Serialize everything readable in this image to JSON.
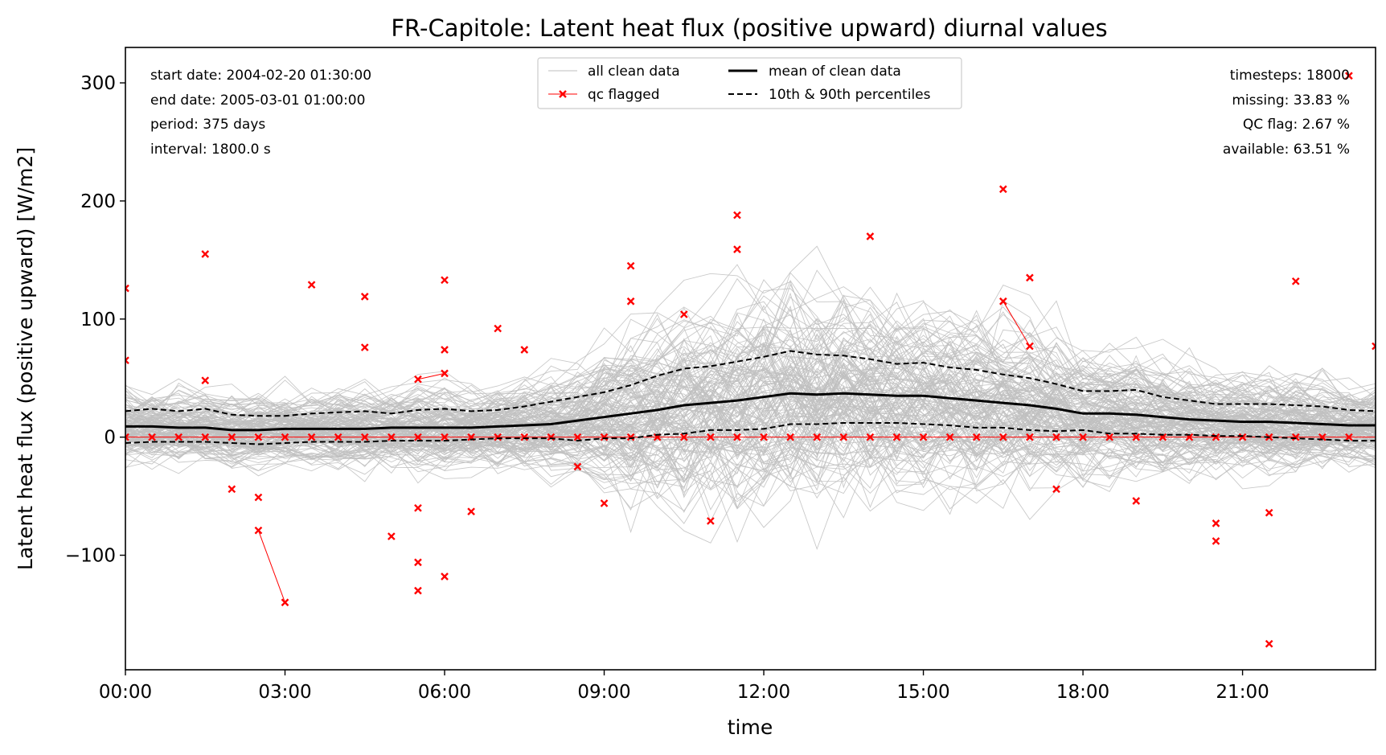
{
  "chart_data": {
    "type": "line",
    "title": "FR-Capitole: Latent heat flux (positive upward) diurnal values",
    "xlabel": "time",
    "ylabel": "Latent heat flux (positive upward) [W/m2]",
    "xlim": [
      0,
      23.5
    ],
    "ylim": [
      -197,
      330
    ],
    "x_ticks": [
      0,
      3,
      6,
      9,
      12,
      15,
      18,
      21
    ],
    "x_tick_labels": [
      "00:00",
      "03:00",
      "06:00",
      "09:00",
      "12:00",
      "15:00",
      "18:00",
      "21:00"
    ],
    "y_ticks": [
      -100,
      0,
      100,
      200,
      300
    ],
    "y_tick_labels": [
      "−100",
      "0",
      "100",
      "200",
      "300"
    ],
    "grid": false,
    "legend_position": "top-center",
    "info_left": [
      "start date: 2004-02-20 01:30:00",
      "end date: 2005-03-01 01:00:00",
      "period: 375 days",
      "interval: 1800.0 s"
    ],
    "info_right": [
      "timesteps: 18000",
      "missing: 33.83 %",
      "QC flag: 2.67 %",
      "available: 63.51 %"
    ],
    "legend": [
      {
        "label": "all clean data",
        "style": "gray-thin"
      },
      {
        "label": "qc flagged",
        "style": "red-x"
      },
      {
        "label": "mean of clean data",
        "style": "black-solid"
      },
      {
        "label": "10th & 90th percentiles",
        "style": "black-dashed"
      }
    ],
    "x": [
      0,
      0.5,
      1,
      1.5,
      2,
      2.5,
      3,
      3.5,
      4,
      4.5,
      5,
      5.5,
      6,
      6.5,
      7,
      7.5,
      8,
      8.5,
      9,
      9.5,
      10,
      10.5,
      11,
      11.5,
      12,
      12.5,
      13,
      13.5,
      14,
      14.5,
      15,
      15.5,
      16,
      16.5,
      17,
      17.5,
      18,
      18.5,
      19,
      19.5,
      20,
      20.5,
      21,
      21.5,
      22,
      22.5,
      23,
      23.5
    ],
    "series": [
      {
        "name": "mean of clean data",
        "values": [
          9,
          9,
          8,
          8,
          6,
          6,
          7,
          7,
          7,
          7,
          8,
          8,
          8,
          8,
          9,
          10,
          11,
          14,
          17,
          20,
          23,
          27,
          29,
          31,
          34,
          37,
          36,
          37,
          36,
          35,
          35,
          33,
          31,
          29,
          27,
          24,
          20,
          20,
          19,
          17,
          15,
          14,
          13,
          13,
          12,
          11,
          10,
          10
        ]
      },
      {
        "name": "10th & 90th percentiles",
        "values": [
          22,
          24,
          22,
          24,
          19,
          18,
          18,
          20,
          21,
          22,
          20,
          23,
          24,
          22,
          23,
          26,
          30,
          34,
          38,
          44,
          52,
          58,
          60,
          64,
          68,
          73,
          70,
          69,
          66,
          62,
          63,
          59,
          57,
          53,
          50,
          45,
          39,
          39,
          40,
          34,
          31,
          28,
          28,
          28,
          27,
          26,
          23,
          22
        ]
      },
      {
        "name": "10th & 90th percentiles",
        "values": [
          -5,
          -4,
          -4,
          -4,
          -5,
          -6,
          -5,
          -4,
          -4,
          -4,
          -3,
          -3,
          -3,
          -2,
          -1,
          -1,
          -1,
          -3,
          -1,
          -1,
          2,
          3,
          6,
          6,
          7,
          11,
          11,
          12,
          12,
          12,
          11,
          10,
          8,
          8,
          6,
          5,
          6,
          3,
          3,
          2,
          2,
          1,
          1,
          0,
          -1,
          -2,
          -3,
          -3
        ]
      }
    ],
    "qc_flagged": [
      [
        0,
        126
      ],
      [
        0,
        65
      ],
      [
        0,
        0
      ],
      [
        0.5,
        0
      ],
      [
        1,
        0
      ],
      [
        1.5,
        155
      ],
      [
        1.5,
        48
      ],
      [
        1.5,
        0
      ],
      [
        2,
        -44
      ],
      [
        2,
        0
      ],
      [
        2.5,
        -51
      ],
      [
        2.5,
        -79
      ],
      [
        2.5,
        0
      ],
      [
        3,
        -140
      ],
      [
        3,
        0
      ],
      [
        3.5,
        129
      ],
      [
        3.5,
        0
      ],
      [
        4,
        0
      ],
      [
        4.5,
        119
      ],
      [
        4.5,
        76
      ],
      [
        4.5,
        0
      ],
      [
        5,
        -84
      ],
      [
        5,
        0
      ],
      [
        5.5,
        49
      ],
      [
        5.5,
        -60
      ],
      [
        5.5,
        -106
      ],
      [
        5.5,
        -130
      ],
      [
        5.5,
        0
      ],
      [
        6,
        133
      ],
      [
        6,
        74
      ],
      [
        6,
        54
      ],
      [
        6,
        -118
      ],
      [
        6,
        0
      ],
      [
        6.5,
        -63
      ],
      [
        6.5,
        0
      ],
      [
        7,
        92
      ],
      [
        7,
        0
      ],
      [
        7.5,
        74
      ],
      [
        7.5,
        0
      ],
      [
        8,
        0
      ],
      [
        8.5,
        -25
      ],
      [
        8.5,
        0
      ],
      [
        9,
        -56
      ],
      [
        9,
        0
      ],
      [
        9.5,
        145
      ],
      [
        9.5,
        115
      ],
      [
        9.5,
        0
      ],
      [
        10,
        0
      ],
      [
        10.5,
        104
      ],
      [
        10.5,
        0
      ],
      [
        11,
        -71
      ],
      [
        11,
        0
      ],
      [
        11.5,
        188
      ],
      [
        11.5,
        159
      ],
      [
        11.5,
        0
      ],
      [
        12,
        0
      ],
      [
        12.5,
        0
      ],
      [
        13,
        0
      ],
      [
        13.5,
        0
      ],
      [
        14,
        170
      ],
      [
        14,
        0
      ],
      [
        14.5,
        0
      ],
      [
        15,
        0
      ],
      [
        15.5,
        0
      ],
      [
        16,
        0
      ],
      [
        16.5,
        210
      ],
      [
        16.5,
        115
      ],
      [
        16.5,
        0
      ],
      [
        17,
        135
      ],
      [
        17,
        77
      ],
      [
        17,
        0
      ],
      [
        17.5,
        -44
      ],
      [
        17.5,
        0
      ],
      [
        18,
        0
      ],
      [
        18.5,
        0
      ],
      [
        19,
        -54
      ],
      [
        19,
        0
      ],
      [
        19.5,
        0
      ],
      [
        20,
        0
      ],
      [
        20.5,
        -73
      ],
      [
        20.5,
        -88
      ],
      [
        20.5,
        0
      ],
      [
        21,
        0
      ],
      [
        21.5,
        -64
      ],
      [
        21.5,
        -175
      ],
      [
        21.5,
        0
      ],
      [
        22,
        132
      ],
      [
        22,
        0
      ],
      [
        22.5,
        0
      ],
      [
        23,
        306
      ],
      [
        23,
        0
      ],
      [
        23.5,
        77
      ]
    ],
    "qc_flagged_links": [
      [
        [
          2.5,
          -79
        ],
        [
          3,
          -140
        ]
      ],
      [
        [
          5.5,
          49
        ],
        [
          6,
          54
        ]
      ],
      [
        [
          16.5,
          115
        ],
        [
          17,
          77
        ]
      ],
      [
        [
          0,
          0
        ],
        [
          23.5,
          0
        ]
      ]
    ],
    "clean_data_band": {
      "description_values_only": true,
      "center": [
        9,
        9,
        8,
        8,
        6,
        6,
        7,
        7,
        7,
        7,
        8,
        8,
        8,
        8,
        9,
        10,
        11,
        14,
        17,
        20,
        23,
        27,
        29,
        31,
        34,
        37,
        36,
        37,
        36,
        35,
        35,
        33,
        31,
        29,
        27,
        24,
        20,
        20,
        19,
        17,
        15,
        14,
        13,
        13,
        12,
        11,
        10,
        10
      ],
      "spread": [
        26,
        26,
        26,
        26,
        26,
        26,
        26,
        26,
        28,
        30,
        28,
        32,
        32,
        30,
        32,
        34,
        38,
        44,
        52,
        62,
        70,
        76,
        78,
        80,
        80,
        82,
        80,
        78,
        76,
        72,
        72,
        68,
        66,
        64,
        62,
        58,
        50,
        48,
        48,
        44,
        40,
        38,
        38,
        38,
        36,
        34,
        30,
        28
      ],
      "colors": {
        "clean": "#bfbfbf",
        "mean": "#000000",
        "percentile": "#000000",
        "qc": "#ff0000"
      }
    }
  }
}
